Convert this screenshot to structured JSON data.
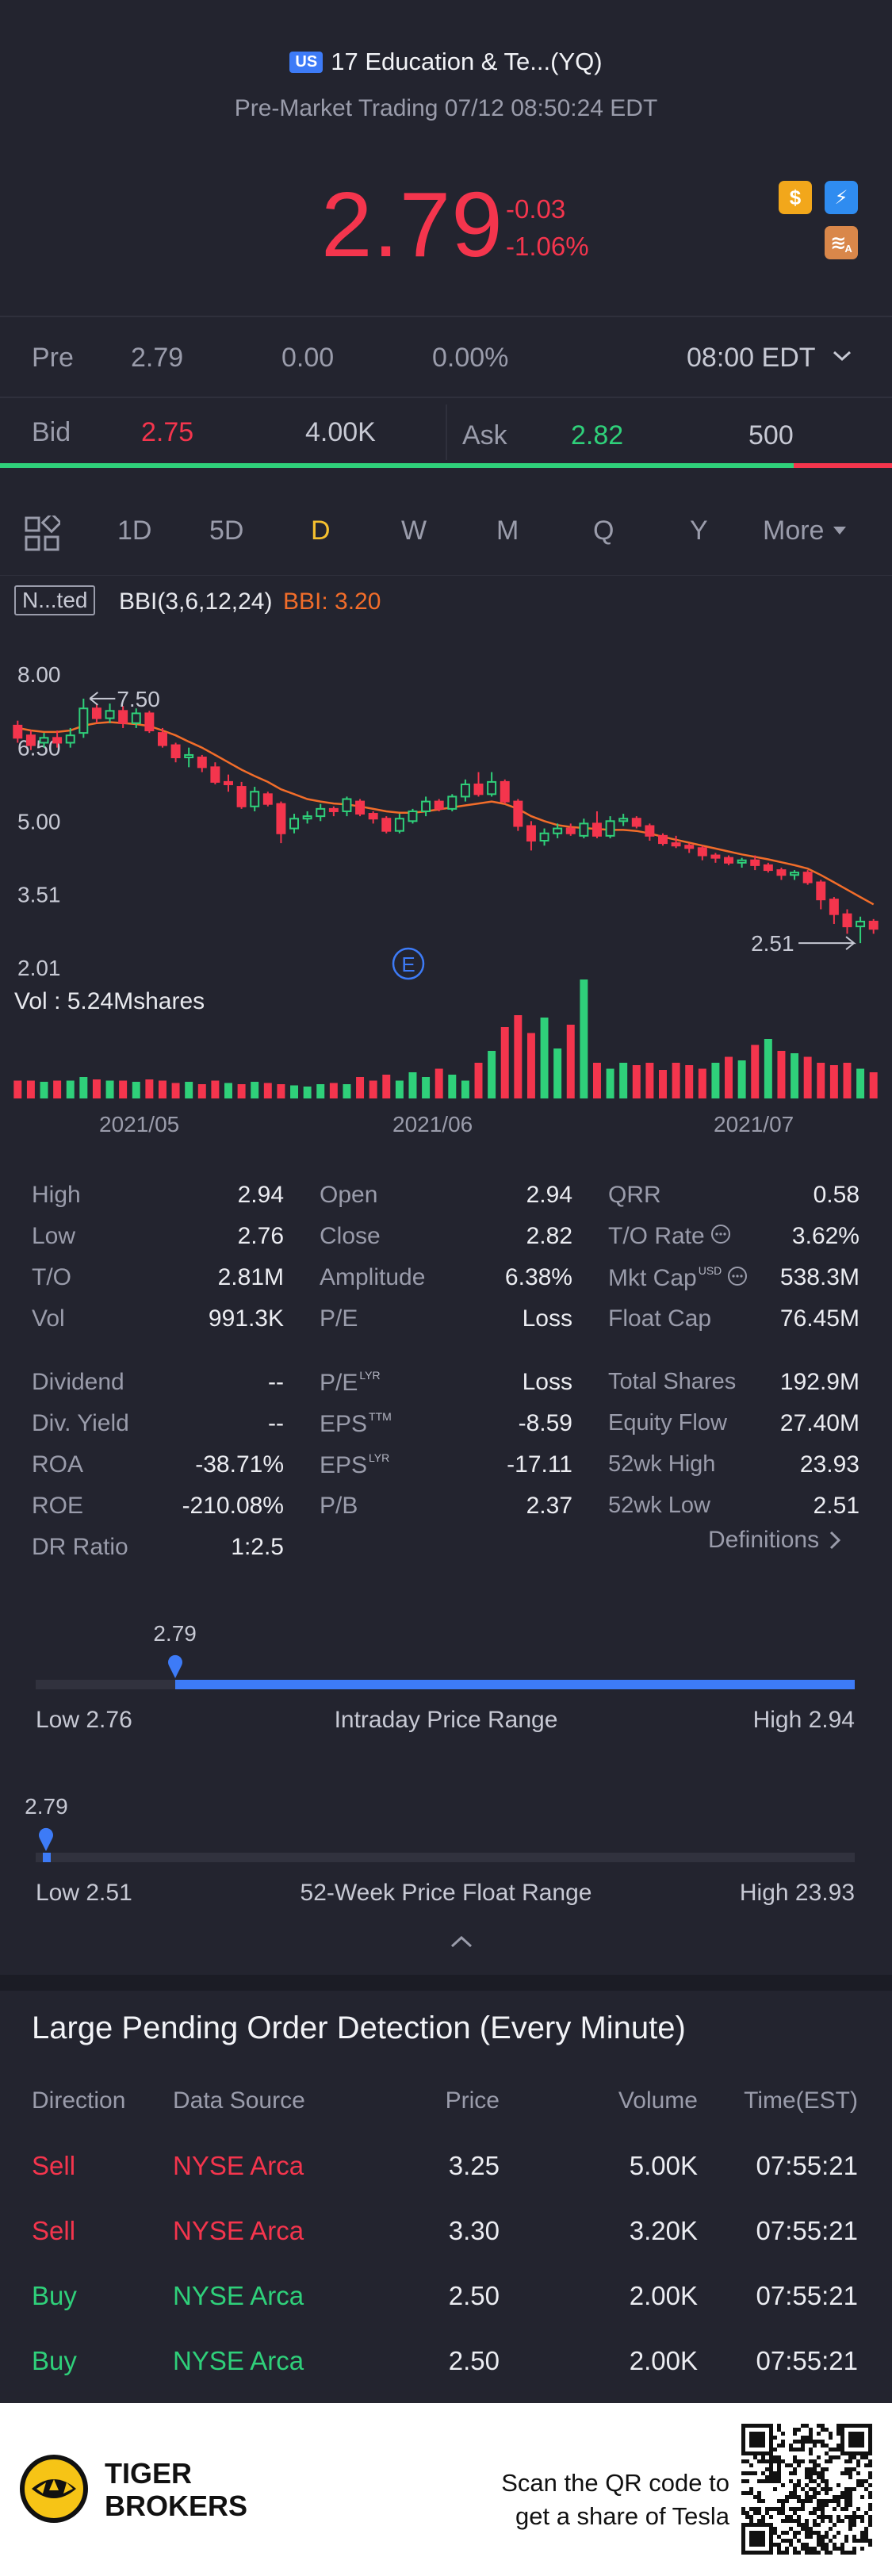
{
  "header": {
    "market_badge": "US",
    "title": "17 Education & Te...(YQ)",
    "subtitle": "Pre-Market Trading 07/12 08:50:24 EDT",
    "price": "2.79",
    "change": "-0.03",
    "change_pct": "-1.06%",
    "icons": [
      "dollar-icon",
      "flash-icon",
      "layers-icon"
    ],
    "icon_letters": {
      "dollar": "$",
      "flash": "⚡",
      "stack": "≋",
      "stack_sub": "A"
    }
  },
  "pre": {
    "label": "Pre",
    "price": "2.79",
    "change": "0.00",
    "pct": "0.00%",
    "time": "08:00 EDT"
  },
  "bidask": {
    "bid_label": "Bid",
    "bid": "2.75",
    "bid_size": "4.00K",
    "ask_label": "Ask",
    "ask": "2.82",
    "ask_size": "500",
    "bid_fraction": 0.89
  },
  "tabs": {
    "items": [
      "1D",
      "5D",
      "D",
      "W",
      "M",
      "Q",
      "Y",
      "More"
    ],
    "active": "D"
  },
  "chart": {
    "indicator_tag": "N...ted",
    "indicator_name": "BBI(3,6,12,24)",
    "indicator_value": "BBI: 3.20",
    "vol_label": "Vol",
    "vol_value": ": 5.24Mshares",
    "high_marker": "7.50",
    "low_marker": "2.51",
    "event_marker": "E",
    "colors": {
      "up": "#2fd07a",
      "down": "#f4354d",
      "bbi": "#f26d2a"
    }
  },
  "chart_data": {
    "type": "candlestick",
    "y_ticks": [
      "8.00",
      "6.50",
      "5.00",
      "3.51",
      "2.01"
    ],
    "x_ticks": [
      "2021/05",
      "2021/06",
      "2021/07"
    ],
    "ylim": [
      2.01,
      8.0
    ],
    "candles": [
      {
        "o": 6.95,
        "c": 6.7,
        "h": 7.05,
        "l": 6.6
      },
      {
        "o": 6.75,
        "c": 6.55,
        "h": 6.85,
        "l": 6.45
      },
      {
        "o": 6.6,
        "c": 6.7,
        "h": 6.8,
        "l": 6.5
      },
      {
        "o": 6.7,
        "c": 6.6,
        "h": 6.85,
        "l": 6.5
      },
      {
        "o": 6.6,
        "c": 6.75,
        "h": 6.9,
        "l": 6.5
      },
      {
        "o": 6.8,
        "c": 7.3,
        "h": 7.5,
        "l": 6.7
      },
      {
        "o": 7.3,
        "c": 7.1,
        "h": 7.4,
        "l": 7.0
      },
      {
        "o": 7.1,
        "c": 7.25,
        "h": 7.4,
        "l": 7.0
      },
      {
        "o": 7.25,
        "c": 7.0,
        "h": 7.35,
        "l": 6.9
      },
      {
        "o": 7.0,
        "c": 7.2,
        "h": 7.3,
        "l": 6.9
      },
      {
        "o": 7.2,
        "c": 6.85,
        "h": 7.25,
        "l": 6.8
      },
      {
        "o": 6.8,
        "c": 6.55,
        "h": 6.9,
        "l": 6.5
      },
      {
        "o": 6.55,
        "c": 6.3,
        "h": 6.6,
        "l": 6.2
      },
      {
        "o": 6.3,
        "c": 6.35,
        "h": 6.5,
        "l": 6.1
      },
      {
        "o": 6.3,
        "c": 6.1,
        "h": 6.35,
        "l": 6.0
      },
      {
        "o": 6.1,
        "c": 5.8,
        "h": 6.2,
        "l": 5.75
      },
      {
        "o": 5.8,
        "c": 5.75,
        "h": 5.95,
        "l": 5.6
      },
      {
        "o": 5.7,
        "c": 5.3,
        "h": 5.8,
        "l": 5.25
      },
      {
        "o": 5.3,
        "c": 5.6,
        "h": 5.7,
        "l": 5.2
      },
      {
        "o": 5.55,
        "c": 5.35,
        "h": 5.6,
        "l": 5.3
      },
      {
        "o": 5.35,
        "c": 4.75,
        "h": 5.4,
        "l": 4.55
      },
      {
        "o": 4.85,
        "c": 5.05,
        "h": 5.15,
        "l": 4.75
      },
      {
        "o": 5.05,
        "c": 5.1,
        "h": 5.2,
        "l": 4.95
      },
      {
        "o": 5.1,
        "c": 5.25,
        "h": 5.35,
        "l": 5.0
      },
      {
        "o": 5.25,
        "c": 5.2,
        "h": 5.3,
        "l": 5.1
      },
      {
        "o": 5.2,
        "c": 5.45,
        "h": 5.5,
        "l": 5.1
      },
      {
        "o": 5.4,
        "c": 5.15,
        "h": 5.45,
        "l": 5.1
      },
      {
        "o": 5.15,
        "c": 5.05,
        "h": 5.2,
        "l": 4.95
      },
      {
        "o": 5.05,
        "c": 4.8,
        "h": 5.1,
        "l": 4.75
      },
      {
        "o": 4.8,
        "c": 5.05,
        "h": 5.15,
        "l": 4.75
      },
      {
        "o": 5.0,
        "c": 5.2,
        "h": 5.25,
        "l": 4.95
      },
      {
        "o": 5.2,
        "c": 5.4,
        "h": 5.5,
        "l": 5.1
      },
      {
        "o": 5.4,
        "c": 5.25,
        "h": 5.45,
        "l": 5.2
      },
      {
        "o": 5.25,
        "c": 5.5,
        "h": 5.55,
        "l": 5.2
      },
      {
        "o": 5.5,
        "c": 5.75,
        "h": 5.85,
        "l": 5.4
      },
      {
        "o": 5.75,
        "c": 5.55,
        "h": 6.0,
        "l": 5.5
      },
      {
        "o": 5.55,
        "c": 5.8,
        "h": 6.0,
        "l": 5.5
      },
      {
        "o": 5.8,
        "c": 5.4,
        "h": 5.85,
        "l": 5.35
      },
      {
        "o": 5.4,
        "c": 4.9,
        "h": 5.45,
        "l": 4.8
      },
      {
        "o": 4.9,
        "c": 4.6,
        "h": 5.0,
        "l": 4.4
      },
      {
        "o": 4.6,
        "c": 4.75,
        "h": 4.85,
        "l": 4.5
      },
      {
        "o": 4.75,
        "c": 4.85,
        "h": 4.95,
        "l": 4.65
      },
      {
        "o": 4.85,
        "c": 4.75,
        "h": 4.95,
        "l": 4.7
      },
      {
        "o": 4.7,
        "c": 4.95,
        "h": 5.05,
        "l": 4.65
      },
      {
        "o": 4.95,
        "c": 4.7,
        "h": 5.2,
        "l": 4.65
      },
      {
        "o": 4.7,
        "c": 5.0,
        "h": 5.1,
        "l": 4.65
      },
      {
        "o": 5.0,
        "c": 5.05,
        "h": 5.15,
        "l": 4.9
      },
      {
        "o": 5.05,
        "c": 4.9,
        "h": 5.1,
        "l": 4.85
      },
      {
        "o": 4.9,
        "c": 4.7,
        "h": 4.95,
        "l": 4.6
      },
      {
        "o": 4.7,
        "c": 4.55,
        "h": 4.75,
        "l": 4.5
      },
      {
        "o": 4.55,
        "c": 4.5,
        "h": 4.7,
        "l": 4.45
      },
      {
        "o": 4.5,
        "c": 4.45,
        "h": 4.55,
        "l": 4.35
      },
      {
        "o": 4.45,
        "c": 4.3,
        "h": 4.5,
        "l": 4.2
      },
      {
        "o": 4.3,
        "c": 4.25,
        "h": 4.35,
        "l": 4.15
      },
      {
        "o": 4.25,
        "c": 4.15,
        "h": 4.3,
        "l": 4.1
      },
      {
        "o": 4.15,
        "c": 4.2,
        "h": 4.25,
        "l": 4.05
      },
      {
        "o": 4.2,
        "c": 4.1,
        "h": 4.3,
        "l": 4.0
      },
      {
        "o": 4.1,
        "c": 4.0,
        "h": 4.15,
        "l": 3.95
      },
      {
        "o": 4.0,
        "c": 3.9,
        "h": 4.05,
        "l": 3.8
      },
      {
        "o": 3.9,
        "c": 3.95,
        "h": 4.0,
        "l": 3.8
      },
      {
        "o": 3.95,
        "c": 3.75,
        "h": 4.0,
        "l": 3.7
      },
      {
        "o": 3.75,
        "c": 3.4,
        "h": 3.8,
        "l": 3.2
      },
      {
        "o": 3.4,
        "c": 3.1,
        "h": 3.45,
        "l": 2.9
      },
      {
        "o": 3.1,
        "c": 2.85,
        "h": 3.2,
        "l": 2.7
      },
      {
        "o": 2.85,
        "c": 2.95,
        "h": 3.05,
        "l": 2.51
      },
      {
        "o": 2.95,
        "c": 2.8,
        "h": 3.0,
        "l": 2.7
      }
    ],
    "bbi": [
      6.9,
      6.85,
      6.82,
      6.82,
      6.85,
      6.95,
      7.0,
      7.02,
      7.0,
      6.98,
      6.94,
      6.85,
      6.75,
      6.62,
      6.5,
      6.35,
      6.2,
      6.05,
      5.92,
      5.8,
      5.65,
      5.55,
      5.45,
      5.4,
      5.36,
      5.34,
      5.3,
      5.25,
      5.2,
      5.17,
      5.17,
      5.2,
      5.24,
      5.28,
      5.32,
      5.36,
      5.4,
      5.35,
      5.25,
      5.1,
      5.0,
      4.92,
      4.88,
      4.86,
      4.84,
      4.82,
      4.82,
      4.8,
      4.75,
      4.68,
      4.62,
      4.56,
      4.5,
      4.44,
      4.38,
      4.32,
      4.27,
      4.22,
      4.16,
      4.1,
      4.03,
      3.9,
      3.75,
      3.6,
      3.45,
      3.3
    ],
    "volume": [
      0.15,
      0.15,
      0.14,
      0.15,
      0.15,
      0.18,
      0.16,
      0.15,
      0.15,
      0.14,
      0.16,
      0.15,
      0.13,
      0.14,
      0.12,
      0.15,
      0.13,
      0.12,
      0.14,
      0.13,
      0.12,
      0.11,
      0.1,
      0.12,
      0.13,
      0.12,
      0.18,
      0.15,
      0.2,
      0.15,
      0.22,
      0.18,
      0.25,
      0.2,
      0.15,
      0.3,
      0.4,
      0.6,
      0.7,
      0.55,
      0.68,
      0.42,
      0.62,
      1.0,
      0.3,
      0.25,
      0.3,
      0.28,
      0.3,
      0.24,
      0.3,
      0.28,
      0.25,
      0.3,
      0.35,
      0.32,
      0.45,
      0.5,
      0.4,
      0.38,
      0.35,
      0.3,
      0.28,
      0.3,
      0.25,
      0.22
    ],
    "volume_up": [
      0,
      0,
      1,
      0,
      1,
      1,
      0,
      1,
      0,
      1,
      0,
      0,
      0,
      1,
      0,
      0,
      1,
      0,
      1,
      0,
      0,
      1,
      1,
      1,
      0,
      1,
      0,
      0,
      0,
      1,
      1,
      1,
      0,
      1,
      1,
      0,
      1,
      0,
      0,
      0,
      1,
      1,
      0,
      1,
      0,
      1,
      1,
      0,
      0,
      0,
      0,
      0,
      0,
      1,
      0,
      1,
      0,
      1,
      0,
      1,
      0,
      0,
      0,
      0,
      1,
      0
    ]
  },
  "stats": {
    "col1": [
      {
        "label": "High",
        "value": "2.94"
      },
      {
        "label": "Low",
        "value": "2.76"
      },
      {
        "label": "T/O",
        "value": "2.81M"
      },
      {
        "label": "Vol",
        "value": "991.3K"
      },
      {
        "label": "Dividend",
        "value": "--"
      },
      {
        "label": "Div. Yield",
        "value": "--"
      },
      {
        "label": "ROA",
        "value": "-38.71%"
      },
      {
        "label": "ROE",
        "value": "-210.08%"
      },
      {
        "label": "DR Ratio",
        "value": "1:2.5"
      }
    ],
    "col2": [
      {
        "label": "Open",
        "value": "2.94",
        "sup": ""
      },
      {
        "label": "Close",
        "value": "2.82",
        "sup": ""
      },
      {
        "label": "Amplitude",
        "value": "6.38%",
        "sup": ""
      },
      {
        "label": "P/E",
        "value": "Loss",
        "sup": ""
      },
      {
        "label": "P/E",
        "value": "Loss",
        "sup": "LYR"
      },
      {
        "label": "EPS",
        "value": "-8.59",
        "sup": "TTM"
      },
      {
        "label": "EPS",
        "value": "-17.11",
        "sup": "LYR"
      },
      {
        "label": "P/B",
        "value": "2.37",
        "sup": ""
      }
    ],
    "col3": [
      {
        "label": "QRR",
        "value": "0.58",
        "sup": ""
      },
      {
        "label": "T/O Rate",
        "value": "3.62%",
        "sup": ""
      },
      {
        "label": "Mkt Cap",
        "value": "538.3M",
        "sup": "USD"
      },
      {
        "label": "Float Cap",
        "value": "76.45M",
        "sup": ""
      },
      {
        "label": "Total Shares",
        "value": "192.9M",
        "sup": ""
      },
      {
        "label": "Equity Flow",
        "value": "27.40M",
        "sup": ""
      },
      {
        "label": "52wk High",
        "value": "23.93",
        "sup": ""
      },
      {
        "label": "52wk Low",
        "value": "2.51",
        "sup": ""
      }
    ],
    "definitions": "Definitions"
  },
  "ranges": {
    "intraday": {
      "current": "2.79",
      "low": "Low 2.76",
      "high": "High 2.94",
      "title": "Intraday Price Range",
      "position": 0.17
    },
    "week52": {
      "current": "2.79",
      "low": "Low 2.51",
      "high": "High 23.93",
      "title": "52-Week Price Float Range",
      "position": 0.013
    }
  },
  "orders": {
    "title": "Large Pending Order Detection (Every Minute)",
    "headers": [
      "Direction",
      "Data Source",
      "Price",
      "Volume",
      "Time(EST)"
    ],
    "rows": [
      {
        "dir": "Sell",
        "src": "NYSE Arca",
        "price": "3.25",
        "vol": "5.00K",
        "time": "07:55:21"
      },
      {
        "dir": "Sell",
        "src": "NYSE Arca",
        "price": "3.30",
        "vol": "3.20K",
        "time": "07:55:21"
      },
      {
        "dir": "Buy",
        "src": "NYSE Arca",
        "price": "2.50",
        "vol": "2.00K",
        "time": "07:55:21"
      },
      {
        "dir": "Buy",
        "src": "NYSE Arca",
        "price": "2.50",
        "vol": "2.00K",
        "time": "07:55:21"
      }
    ]
  },
  "footer": {
    "brand_line1": "TIGER",
    "brand_line2": "BROKERS",
    "cta_line1": "Scan the QR code to",
    "cta_line2": "get a share of Tesla"
  }
}
